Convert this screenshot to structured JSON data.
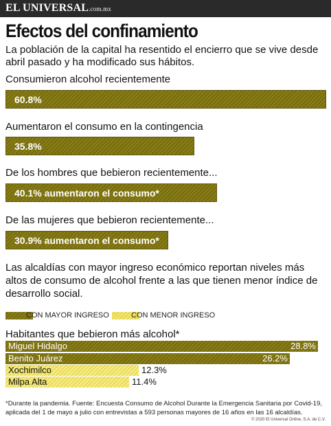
{
  "header": {
    "brand": "EL UNIVERSAL",
    "brand_domain": ".com.mx"
  },
  "title": "Efectos del confinamiento",
  "subtitle": "La población de la capital ha resentido el encierro  que se vive desde abril pasado y ha modificado sus hábitos.",
  "questions": [
    {
      "question": "Consumieron alcohol recientemente",
      "value": 60.8,
      "label": "60.8%"
    },
    {
      "question": "Aumentaron el consumo en la contingencia",
      "value": 35.8,
      "label": "35.8%"
    },
    {
      "question": "De los hombres que bebieron recientemente...",
      "value": 40.1,
      "label": "40.1% aumentaron el consumo*"
    },
    {
      "question": "De las mujeres que bebieron recientemente...",
      "value": 30.9,
      "label": "30.9% aumentaron el consumo*"
    }
  ],
  "paragraph": "Las alcaldías con mayor ingreso económico reportan niveles más altos de consumo de alcohol frente a las que tienen menor índice de desarrollo social.",
  "legend": {
    "high": "CON MAYOR INGRESO",
    "low": "CON MENOR INGRESO"
  },
  "alcaldias_subtitle": "Habitantes que bebieron más alcohol*",
  "colors": {
    "olive": "#7f7414",
    "yellow": "#ede06a",
    "topbar": "#2a2a2a"
  },
  "chart_data": [
    {
      "type": "bar",
      "categories": [
        "Consumieron alcohol recientemente",
        "Aumentaron el consumo en la contingencia",
        "De los hombres que bebieron recientemente...",
        "De las mujeres que bebieron recientemente..."
      ],
      "values": [
        60.8,
        35.8,
        40.1,
        30.9
      ],
      "xlim": [
        0,
        100
      ]
    },
    {
      "type": "bar",
      "categories": [
        "Miguel Hidalgo",
        "Benito Juárez",
        "Xochimilco",
        "Milpa Alta"
      ],
      "values": [
        28.8,
        26.2,
        12.3,
        11.4
      ],
      "value_labels": [
        "28.8%",
        "26.2%",
        "12.3%",
        "11.4%"
      ],
      "groups": [
        "high",
        "high",
        "low",
        "low"
      ],
      "xlim": [
        0,
        30
      ]
    }
  ],
  "footer": "*Durante la pandemia. Fuente: Encuesta Consumo de Alcohol Durante la Emergencia Sanitaria por Covid-19, aplicada del 1 de mayo a julio con entrevistas a 593 personas mayores de 16 años en las 16 alcaldías.",
  "copyright": "© 2020 El Universal Online, S.A. de C.V."
}
